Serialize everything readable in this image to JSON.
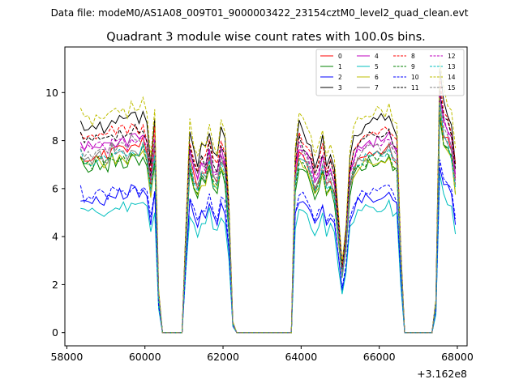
{
  "figure": {
    "suptitle": "Data file: modeM0/AS1A08_009T01_9000003422_23154cztM0_level2_quad_clean.evt",
    "title": "Quadrant 3 module wise count rates with 100.0s bins.",
    "x_offset_label": "+3.162e8"
  },
  "chart_data": {
    "type": "line",
    "title": "Quadrant 3 module wise count rates with 100.0s bins.",
    "xlabel": "",
    "ylabel": "",
    "x_offset": 316200000,
    "xlim": [
      57950,
      68250
    ],
    "ylim": [
      -0.55,
      11.9
    ],
    "xticks": [
      58000,
      60000,
      62000,
      64000,
      66000,
      68000
    ],
    "xtick_labels": [
      "58000",
      "60000",
      "62000",
      "64000",
      "66000",
      "68000"
    ],
    "yticks": [
      0,
      2,
      4,
      6,
      8,
      10
    ],
    "ytick_labels": [
      "0",
      "2",
      "4",
      "6",
      "8",
      "10"
    ],
    "grid": false,
    "legend_position": "top-right",
    "legend_columns": 4,
    "profile": {
      "x": [
        58350,
        58450,
        58550,
        58650,
        58750,
        58850,
        58950,
        59050,
        59150,
        59250,
        59350,
        59450,
        59550,
        59650,
        59750,
        59850,
        59950,
        60050,
        60150,
        60250,
        60350,
        60450,
        60550,
        60650,
        60750,
        60850,
        60950,
        61050,
        61150,
        61250,
        61350,
        61450,
        61550,
        61650,
        61750,
        61850,
        61950,
        62050,
        62150,
        62250,
        62350,
        62450,
        62550,
        62650,
        62750,
        62850,
        62950,
        63050,
        63150,
        63250,
        63350,
        63450,
        63550,
        63650,
        63750,
        63850,
        63950,
        64050,
        64150,
        64250,
        64350,
        64450,
        64550,
        64650,
        64750,
        64850,
        64950,
        65050,
        65150,
        65250,
        65350,
        65450,
        65550,
        65650,
        65750,
        65850,
        65950,
        66050,
        66150,
        66250,
        66350,
        66450,
        66550,
        66650,
        66750,
        66850,
        66950,
        67050,
        67150,
        67250,
        67350,
        67450,
        67550,
        67650,
        67750,
        67850,
        67950
      ],
      "y": [
        1.0,
        0.96,
        0.97,
        0.96,
        0.99,
        0.98,
        0.97,
        0.97,
        1.02,
        0.99,
        1.01,
        1.0,
        0.99,
        1.04,
        1.03,
        1.01,
        1.04,
        0.97,
        0.8,
        1.0,
        0.2,
        0,
        0,
        0,
        0,
        0,
        0,
        0.5,
        0.95,
        0.85,
        0.8,
        0.88,
        0.86,
        0.96,
        0.85,
        0.82,
        0.95,
        0.9,
        0.6,
        0.05,
        0,
        0,
        0,
        0,
        0,
        0,
        0,
        0,
        0,
        0,
        0,
        0,
        0,
        0,
        0,
        0.85,
        0.98,
        0.96,
        0.92,
        0.88,
        0.8,
        0.84,
        0.92,
        0.8,
        0.85,
        0.78,
        0.55,
        0.32,
        0.48,
        0.82,
        0.91,
        0.95,
        0.97,
        0.98,
        1.0,
        0.99,
        1.0,
        1.01,
        1.0,
        1.02,
        0.97,
        0.95,
        0.4,
        0,
        0,
        0,
        0,
        0,
        0,
        0,
        0,
        0.15,
        1.25,
        1.1,
        1.05,
        1.0,
        0.82
      ]
    },
    "series": [
      {
        "name": "0",
        "level": 7.6,
        "color": "#ff0000",
        "dashed": false
      },
      {
        "name": "1",
        "level": 7.1,
        "color": "#008000",
        "dashed": false
      },
      {
        "name": "2",
        "level": 5.7,
        "color": "#0000ff",
        "dashed": false
      },
      {
        "name": "3",
        "level": 8.8,
        "color": "#000000",
        "dashed": false
      },
      {
        "name": "4",
        "level": 8.0,
        "color": "#bf00bf",
        "dashed": false
      },
      {
        "name": "5",
        "level": 5.2,
        "color": "#00bfbf",
        "dashed": false
      },
      {
        "name": "6",
        "level": 7.2,
        "color": "#bfbf00",
        "dashed": false
      },
      {
        "name": "7",
        "level": 7.5,
        "color": "#808080",
        "dashed": false
      },
      {
        "name": "8",
        "level": 8.4,
        "color": "#ff0000",
        "dashed": true
      },
      {
        "name": "9",
        "level": 7.3,
        "color": "#008000",
        "dashed": true
      },
      {
        "name": "10",
        "level": 5.9,
        "color": "#0000ff",
        "dashed": true
      },
      {
        "name": "11",
        "level": 8.2,
        "color": "#000000",
        "dashed": true
      },
      {
        "name": "12",
        "level": 7.9,
        "color": "#bf00bf",
        "dashed": true
      },
      {
        "name": "13",
        "level": 7.4,
        "color": "#00bfbf",
        "dashed": true
      },
      {
        "name": "14",
        "level": 9.2,
        "color": "#bfbf00",
        "dashed": true
      },
      {
        "name": "15",
        "level": 7.7,
        "color": "#808080",
        "dashed": true
      }
    ]
  }
}
